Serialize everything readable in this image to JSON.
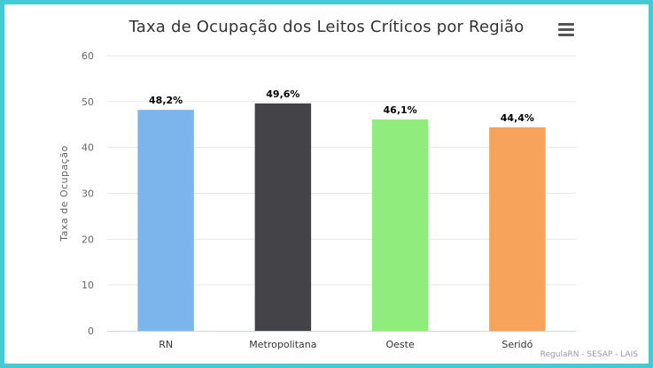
{
  "chart_data": {
    "type": "bar",
    "title": "Taxa de Ocupação dos Leitos Críticos por Região",
    "ylabel": "Taxa de Ocupação",
    "xlabel": "",
    "categories": [
      "RN",
      "Metropolitana",
      "Oeste",
      "Seridó"
    ],
    "values": [
      48.2,
      49.6,
      46.1,
      44.4
    ],
    "data_labels": [
      "48,2%",
      "49,6%",
      "46,1%",
      "44,4%"
    ],
    "colors": [
      "#7cb5ec",
      "#434348",
      "#90ed7d",
      "#f7a35c"
    ],
    "ylim": [
      0,
      60
    ],
    "yticks": [
      0,
      10,
      20,
      30,
      40,
      50,
      60
    ],
    "grid": true,
    "legend": "none"
  },
  "menu": {
    "icon": "hamburger-menu-icon"
  },
  "credits": "RegulaRN - SESAP - LAIS",
  "frame_color": "#45c9d3"
}
